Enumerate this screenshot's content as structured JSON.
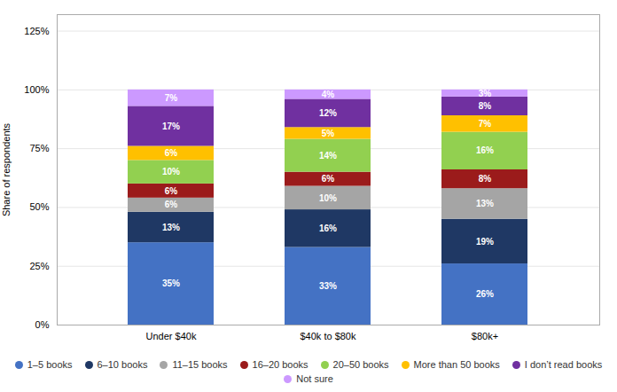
{
  "chart_data": {
    "type": "bar",
    "categories": [
      "Under $40k",
      "$40k to $80k",
      "$80k+"
    ],
    "series": [
      {
        "name": "1–5 books",
        "color": "#4472c4",
        "values": [
          35,
          33,
          26
        ],
        "value_labels": [
          "35%",
          "33%",
          "26%"
        ]
      },
      {
        "name": "6–10 books",
        "color": "#1f3864",
        "values": [
          13,
          16,
          19
        ],
        "value_labels": [
          "13%",
          "16%",
          "19%"
        ]
      },
      {
        "name": "11–15 books",
        "color": "#a5a5a5",
        "values": [
          6,
          10,
          13
        ],
        "value_labels": [
          "6%",
          "10%",
          "13%"
        ]
      },
      {
        "name": "16–20 books",
        "color": "#9b1b1b",
        "values": [
          6,
          6,
          8
        ],
        "value_labels": [
          "6%",
          "6%",
          "8%"
        ]
      },
      {
        "name": "20–50 books",
        "color": "#92d050",
        "values": [
          10,
          14,
          16
        ],
        "value_labels": [
          "10%",
          "14%",
          "16%"
        ]
      },
      {
        "name": "More than 50 books",
        "color": "#ffc000",
        "values": [
          6,
          5,
          7
        ],
        "value_labels": [
          "6%",
          "5%",
          "7%"
        ]
      },
      {
        "name": "I don’t read books",
        "color": "#7030a0",
        "values": [
          17,
          12,
          8
        ],
        "value_labels": [
          "17%",
          "12%",
          "8%"
        ]
      },
      {
        "name": "Not sure",
        "color": "#cc99ff",
        "values": [
          7,
          4,
          3
        ],
        "value_labels": [
          "7%",
          "4%",
          "3%"
        ]
      }
    ],
    "ylabel": "Share of respondents",
    "ylim": [
      0,
      132
    ],
    "yticks": [
      {
        "value": 0,
        "label": "0%"
      },
      {
        "value": 25,
        "label": "25%"
      },
      {
        "value": 50,
        "label": "50%"
      },
      {
        "value": 75,
        "label": "75%"
      },
      {
        "value": 100,
        "label": "100%"
      },
      {
        "value": 125,
        "label": "125%"
      }
    ],
    "grid": true,
    "stacked": true,
    "data_labels": true,
    "legend": "bottom"
  }
}
